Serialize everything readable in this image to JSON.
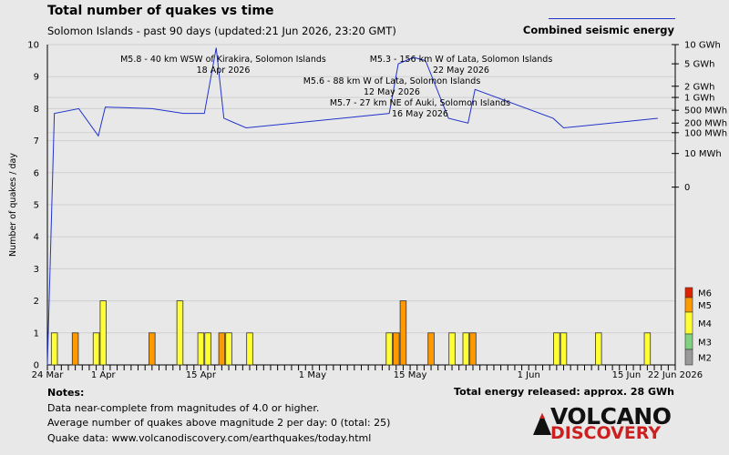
{
  "chart_data": {
    "type": "bar",
    "title": "Total number of quakes vs time",
    "subtitle": "Solomon Islands - past 90 days (updated:21 Jun 2026, 23:20 GMT)",
    "ylabel": "Number of quakes / day",
    "ylim": [
      0,
      10
    ],
    "y_ticks": [
      "0",
      "1",
      "2",
      "3",
      "4",
      "5",
      "6",
      "7",
      "8",
      "9",
      "10"
    ],
    "x_tick_labels": [
      {
        "label": "24 Mar",
        "day": 0
      },
      {
        "label": "1 Apr",
        "day": 8
      },
      {
        "label": "15 Apr",
        "day": 22
      },
      {
        "label": "1 May",
        "day": 38
      },
      {
        "label": "15 May",
        "day": 52
      },
      {
        "label": "1 Jun",
        "day": 69
      },
      {
        "label": "15 Jun",
        "day": 83
      },
      {
        "label": "22 Jun 2026",
        "day": 90
      }
    ],
    "days_total": 90,
    "colors": {
      "M2": "#999999",
      "M3": "#7fd27f",
      "M4": "#ffff33",
      "M5": "#ff9900",
      "M6": "#dd2200",
      "energy_line": "#2233cc"
    },
    "magnitude_legend": [
      "M6",
      "M5",
      "M4",
      "M3",
      "M2"
    ],
    "bars": [
      {
        "day": 1,
        "counts": {
          "M4": 1
        }
      },
      {
        "day": 4,
        "counts": {
          "M5": 1
        }
      },
      {
        "day": 7,
        "counts": {
          "M4": 1
        }
      },
      {
        "day": 8,
        "counts": {
          "M4": 2
        }
      },
      {
        "day": 15,
        "counts": {
          "M5": 1
        }
      },
      {
        "day": 19,
        "counts": {
          "M4": 2
        }
      },
      {
        "day": 22,
        "counts": {
          "M4": 1
        }
      },
      {
        "day": 23,
        "counts": {
          "M4": 1
        }
      },
      {
        "day": 25,
        "counts": {
          "M5": 1
        }
      },
      {
        "day": 26,
        "counts": {
          "M4": 1
        }
      },
      {
        "day": 29,
        "counts": {
          "M4": 1
        }
      },
      {
        "day": 49,
        "counts": {
          "M4": 1
        }
      },
      {
        "day": 50,
        "counts": {
          "M5": 1
        }
      },
      {
        "day": 51,
        "counts": {
          "M5": 2
        }
      },
      {
        "day": 55,
        "counts": {
          "M5": 1
        }
      },
      {
        "day": 58,
        "counts": {
          "M4": 1
        }
      },
      {
        "day": 60,
        "counts": {
          "M4": 1
        }
      },
      {
        "day": 61,
        "counts": {
          "M5": 1
        }
      },
      {
        "day": 73,
        "counts": {
          "M4": 1
        }
      },
      {
        "day": 74,
        "counts": {
          "M4": 1
        }
      },
      {
        "day": 79,
        "counts": {
          "M4": 1
        }
      },
      {
        "day": 86,
        "counts": {
          "M4": 1
        }
      }
    ],
    "energy_series": {
      "name": "Combined seismic energy",
      "right_axis_labels": [
        "10 GWh",
        "5 GWh",
        "2 GWh",
        "1 GWh",
        "500 MWh",
        "200 MWh",
        "100 MWh",
        "10 MWh",
        "0"
      ],
      "right_axis_y_values": [
        10,
        9.4,
        8.7,
        8.35,
        7.95,
        7.55,
        7.25,
        6.6,
        5.55
      ],
      "points": [
        [
          0,
          0
        ],
        [
          1,
          7.85
        ],
        [
          4.5,
          8.0
        ],
        [
          7.3,
          7.15
        ],
        [
          8.3,
          8.05
        ],
        [
          15,
          8.0
        ],
        [
          19.5,
          7.85
        ],
        [
          22.5,
          7.85
        ],
        [
          24.2,
          9.9
        ],
        [
          25.3,
          7.7
        ],
        [
          28.5,
          7.4
        ],
        [
          49,
          7.85
        ],
        [
          50.3,
          9.4
        ],
        [
          52.5,
          9.6
        ],
        [
          54.2,
          9.5
        ],
        [
          57.5,
          7.7
        ],
        [
          60.3,
          7.55
        ],
        [
          61.3,
          8.6
        ],
        [
          72.5,
          7.7
        ],
        [
          74,
          7.4
        ],
        [
          87.5,
          7.7
        ]
      ]
    },
    "annotations": [
      {
        "text": [
          "M5.8 - 40 km WSW of Kirakira, Solomon Islands",
          "18 Apr 2026"
        ],
        "anchor_day": 24.2,
        "anchor_y": 9.9
      },
      {
        "text": [
          "M5.3 - 156 km W of Lata, Solomon Islands",
          "22 May 2026"
        ],
        "anchor_day": 58.0,
        "anchor_y": 9.6
      },
      {
        "text": [
          "M5.6 - 88 km W of Lata, Solomon Islands",
          "12 May 2026"
        ],
        "anchor_day": 49.5,
        "anchor_y": 8.9
      },
      {
        "text": [
          "M5.7 - 27 km NE of Auki, Solomon Islands",
          "16 May 2026"
        ],
        "anchor_day": 53.0,
        "anchor_y": 8.2
      }
    ],
    "grid": true
  },
  "legend_energy_label": "Combined seismic energy",
  "notes": {
    "header": "Notes:",
    "lines": [
      "Data near-complete from magnitudes of 4.0 or higher.",
      "Average number of quakes above magnitude 2 per day: 0 (total: 25)",
      "Quake data: www.volcanodiscovery.com/earthquakes/today.html"
    ],
    "energy_total": "Total energy released: approx. 28 GWh"
  },
  "logo": {
    "line1": "VOLCANO",
    "line2": "DISCOVERY"
  }
}
